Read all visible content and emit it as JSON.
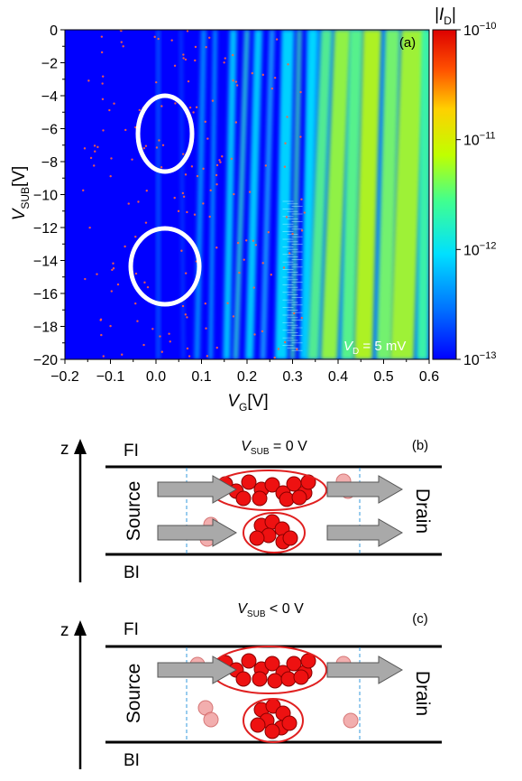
{
  "panel_a": {
    "label": "(a)",
    "annotation": {
      "v": "V",
      "sub": "D",
      "rest": " = 5 mV"
    },
    "colorbar": {
      "title_prefix": "|",
      "title_var": "I",
      "title_sub": "D",
      "title_suffix": "|",
      "tick_labels": [
        {
          "base": "10",
          "exp": "−10",
          "value": 1e-10
        },
        {
          "base": "10",
          "exp": "−11",
          "value": 1e-11
        },
        {
          "base": "10",
          "exp": "−12",
          "value": 1e-12
        },
        {
          "base": "10",
          "exp": "−13",
          "value": 1e-13
        }
      ]
    }
  },
  "chart_data": {
    "type": "heatmap",
    "title": "",
    "x_axis": {
      "var": "V",
      "sub": "G",
      "unit": "[V]",
      "range": [
        -0.2,
        0.6
      ],
      "ticks": [
        "−0.2",
        "−0.1",
        "0.0",
        "0.1",
        "0.2",
        "0.3",
        "0.4",
        "0.5",
        "0.6"
      ]
    },
    "y_axis": {
      "var": "V",
      "sub": "SUB",
      "unit": "[V]",
      "range": [
        -20,
        0
      ],
      "ticks": [
        "0",
        "−2",
        "−4",
        "−6",
        "−8",
        "−10",
        "−12",
        "−14",
        "−16",
        "−18",
        "−20"
      ]
    },
    "color_scale": "log",
    "color_range": [
      1e-13,
      1e-10
    ],
    "colormap": [
      "#0000ff",
      "#0078ff",
      "#00e8ff",
      "#40ff80",
      "#c8ff00",
      "#ffd000",
      "#ff5000",
      "#e00000"
    ],
    "highlight_ellipses": [
      {
        "center_vg": 0.01,
        "center_vsub": -6.5
      },
      {
        "center_vg": 0.01,
        "center_vsub": -14.6
      }
    ]
  },
  "panel_b": {
    "axis_label": "z",
    "top_label": "FI",
    "bottom_label": "BI",
    "left_label": "Source",
    "right_label": "Drain",
    "condition": {
      "v": "V",
      "sub": "SUB",
      "rest": " = 0 V"
    },
    "label": "(b)"
  },
  "panel_c": {
    "axis_label": "z",
    "top_label": "FI",
    "bottom_label": "BI",
    "left_label": "Source",
    "right_label": "Drain",
    "condition": {
      "v": "V",
      "sub": "SUB",
      "rest": " < 0 V"
    },
    "label": "(c)"
  },
  "colors": {
    "heatmap_background": "#0000ff",
    "dot_red": "#ee1111",
    "dot_light": "#f0a0a0",
    "ellipse_red": "#e02020",
    "arrow_gray": "#a9a9a9",
    "dashed_blue": "#3399dd"
  }
}
